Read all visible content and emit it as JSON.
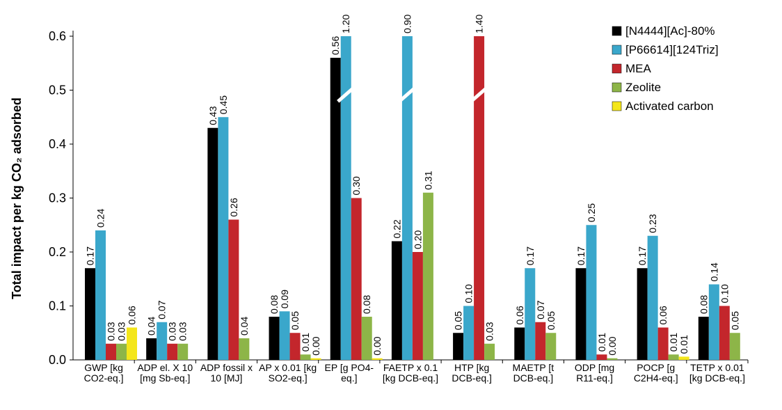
{
  "chart_data": {
    "type": "bar",
    "ylabel": "Total impact per kg CO₂ adsorbed",
    "categories": [
      "GWP [kg CO2-eq.]",
      "ADP el. X 10 [mg Sb-eq.]",
      "ADP fossil x 10 [MJ]",
      "AP x 0.01 [kg SO2-eq.]",
      "EP [g PO4-eq.]",
      "FAETP x 0.1 [kg DCB-eq.]",
      "HTP [kg DCB-eq.]",
      "MAETP [t DCB-eq.]",
      "ODP [mg R11-eq.]",
      "POCP [g C2H4-eq.]",
      "TETP x 0.01 [kg DCB-eq.]"
    ],
    "series": [
      {
        "name": "[N4444][Ac]-80%",
        "color": "#000000",
        "values": [
          0.17,
          0.04,
          0.43,
          0.08,
          0.56,
          0.22,
          0.05,
          0.06,
          0.17,
          0.17,
          0.08
        ],
        "value_labels": [
          "0.17",
          "0.04",
          "0.43",
          "0.08",
          "0.56",
          "0.22",
          "0.05",
          "0.06",
          "0.17",
          "0.17",
          "0.08"
        ]
      },
      {
        "name": "[P66614][124Triz]",
        "color": "#3aa7cb",
        "values": [
          0.24,
          0.07,
          0.45,
          0.09,
          1.2,
          0.9,
          0.1,
          0.17,
          0.25,
          0.23,
          0.14
        ],
        "value_labels": [
          "0.24",
          "0.07",
          "0.45",
          "0.09",
          "1.20",
          "0.90",
          "0.10",
          "0.17",
          "0.25",
          "0.23",
          "0.14"
        ]
      },
      {
        "name": "MEA",
        "color": "#c3262c",
        "values": [
          0.03,
          0.03,
          0.26,
          0.05,
          0.3,
          0.2,
          1.4,
          0.07,
          0.01,
          0.06,
          0.1
        ],
        "value_labels": [
          "0.03",
          "0.03",
          "0.26",
          "0.05",
          "0.30",
          "0.20",
          "1.40",
          "0.07",
          "0.01",
          "0.06",
          "0.10"
        ]
      },
      {
        "name": "Zeolite",
        "color": "#8db548",
        "values": [
          0.03,
          0.03,
          0.04,
          0.01,
          0.08,
          0.31,
          0.03,
          0.05,
          0.003,
          0.01,
          0.05
        ],
        "value_labels": [
          "0.03",
          "0.03",
          "0.04",
          "0.01",
          "0.08",
          "0.31",
          "0.03",
          "0.05",
          "0.00",
          "0.01",
          "0.05"
        ]
      },
      {
        "name": "Activated carbon",
        "color": "#f4e61a",
        "values": [
          0.06,
          null,
          null,
          0.003,
          0.003,
          null,
          null,
          null,
          null,
          0.006,
          null
        ],
        "value_labels": [
          "0.06",
          null,
          null,
          "0.00",
          "0.00",
          null,
          null,
          null,
          null,
          "0.01",
          null
        ]
      }
    ],
    "ylim": [
      0,
      0.6
    ],
    "yticks": [
      {
        "value": 0,
        "label": "0.0"
      },
      0.1,
      0.2,
      0.3,
      0.4,
      0.5,
      0.6
    ],
    "legend": "upper right"
  }
}
